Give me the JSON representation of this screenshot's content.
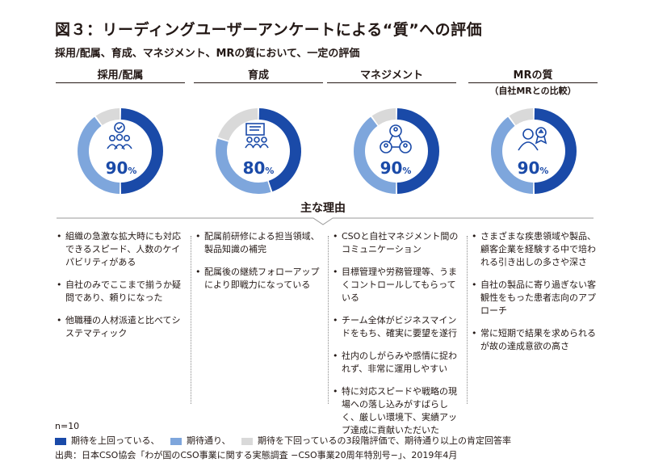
{
  "title": "図３：リーディングユーザーアンケートによる“質”への評価",
  "subtitle": "採用/配属、育成、マネジメント、MRの質において、一定の評価",
  "chart_data": {
    "type": "pie",
    "variant": "donut",
    "legend": [
      {
        "name": "期待を上回っている、",
        "color": "#1a4aa8"
      },
      {
        "name": "期待通り、",
        "color": "#7ea6dc"
      },
      {
        "name": "期待を下回っているの3段階評価で、期待通り以上の肯定回答率",
        "color": "#d9d9d9"
      }
    ],
    "charts": [
      {
        "label": "採用/配属",
        "note": "",
        "icon": "team-quality-icon",
        "value_text": "90",
        "unit": "%",
        "slices": [
          {
            "name": "期待を上回っている",
            "value": 50
          },
          {
            "name": "期待通り",
            "value": 40
          },
          {
            "name": "期待を下回っている",
            "value": 10
          }
        ]
      },
      {
        "label": "育成",
        "note": "",
        "icon": "training-board-icon",
        "value_text": "80",
        "unit": "%",
        "slices": [
          {
            "name": "期待を上回っている",
            "value": 45
          },
          {
            "name": "期待通り",
            "value": 35
          },
          {
            "name": "期待を下回っている",
            "value": 20
          }
        ]
      },
      {
        "label": "マネジメント",
        "note": "",
        "icon": "network-people-icon",
        "value_text": "90",
        "unit": "%",
        "slices": [
          {
            "name": "期待を上回っている",
            "value": 50
          },
          {
            "name": "期待通り",
            "value": 40
          },
          {
            "name": "期待を下回っている",
            "value": 10
          }
        ]
      },
      {
        "label": "MRの質",
        "note": "（自社MRとの比較）",
        "icon": "person-award-icon",
        "value_text": "90",
        "unit": "%",
        "slices": [
          {
            "name": "期待を上回っている",
            "value": 50
          },
          {
            "name": "期待通り",
            "value": 40
          },
          {
            "name": "期待を下回っている",
            "value": 10
          }
        ]
      }
    ]
  },
  "reasons_title": "主な理由",
  "reasons": [
    [
      "組織の急激な拡大時にも対応できるスピード、人数のケイパビリティがある",
      "自社のみでここまで揃うか疑問であり、頼りになった",
      "他職種の人材派遣と比べてシステマティック"
    ],
    [
      "配属前研修による担当領域、製品知識の補完",
      "配属後の継続フォローアップにより即戦力になっている"
    ],
    [
      "CSOと自社マネジメント間のコミュニケーション",
      "目標管理や労務管理等、うまくコントロールしてもらっている",
      "チーム全体がビジネスマインドをもち、確実に要望を遂行",
      "社内のしがらみや感情に捉われず、非常に運用しやすい",
      "特に対応スピードや戦略の現場への落し込みがすばらしく、厳しい環境下、実績アップ達成に貢献いただいた"
    ],
    [
      "さまざまな疾患領域や製品、顧客企業を経験する中で培われる引き出しの多さや深さ",
      "自社の製品に寄り過ぎない客観性をもった患者志向のアプローチ",
      "常に短期で結果を求められるが故の達成意欲の高さ"
    ]
  ],
  "n_label": "n=10",
  "source": "出典：日本CSO協会「わが国のCSO事業に関する実態調査 −CSO事業20周年特別号−」、2019年4月"
}
